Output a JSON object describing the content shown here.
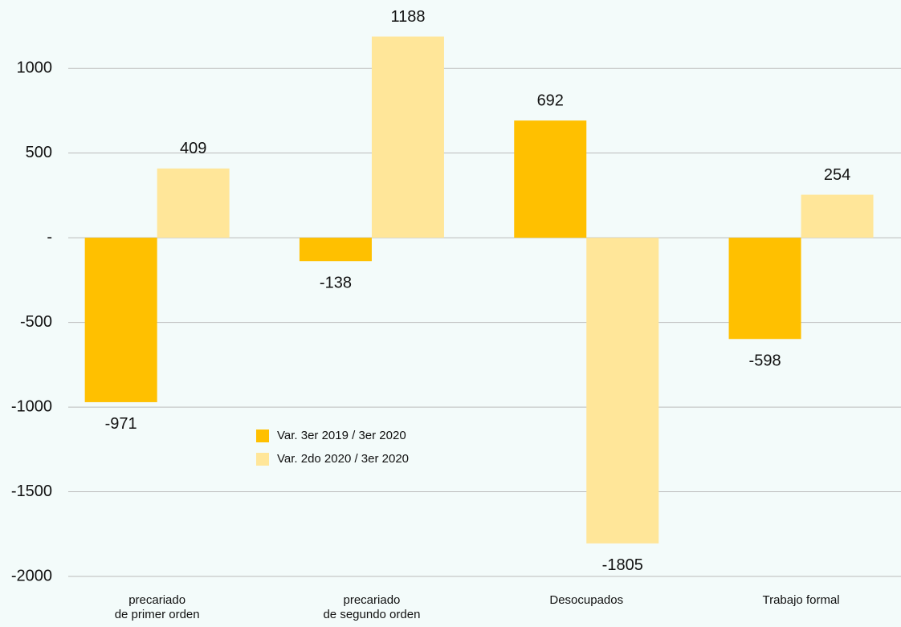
{
  "chart_data": {
    "type": "bar",
    "categories": [
      "precariado\nde primer orden",
      "precariado\nde segundo orden",
      "Desocupados",
      "Trabajo formal"
    ],
    "series": [
      {
        "name": "Var. 3er 2019 / 3er 2020",
        "color": "#ffc000",
        "values": [
          -971,
          -138,
          692,
          -598
        ]
      },
      {
        "name": "Var. 2do 2020 / 3er 2020",
        "color": "#ffe699",
        "values": [
          409,
          1188,
          -1805,
          254
        ]
      }
    ],
    "ylim": [
      -2000,
      1200
    ],
    "yticks": [
      -2000,
      -1500,
      -1000,
      -500,
      {
        "value": 0,
        "label": "-"
      },
      500,
      1000
    ],
    "grid": true
  }
}
